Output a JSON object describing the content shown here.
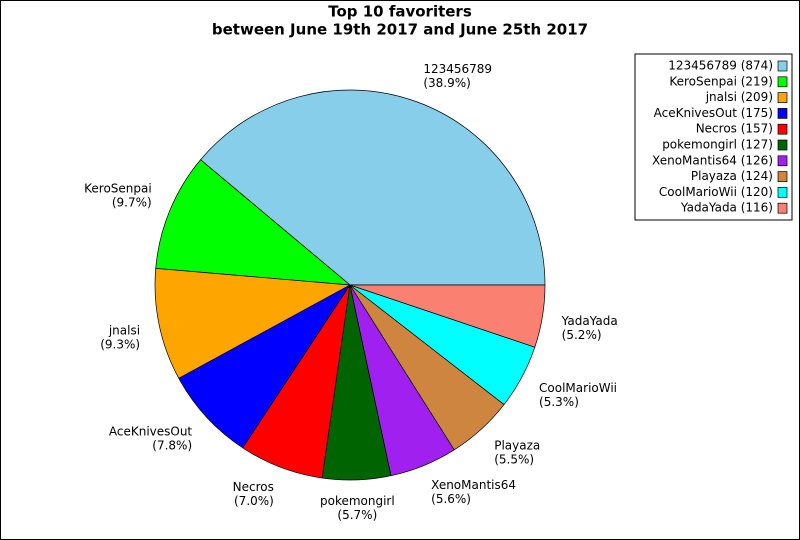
{
  "chart_data": {
    "type": "pie",
    "title": "Top 10 favoriters",
    "subtitle": "between June 19th 2017 and June 25th 2017",
    "categories": [
      "123456789",
      "KeroSenpai",
      "jnalsi",
      "AceKnivesOut",
      "Necros",
      "pokemongirl",
      "XenoMantis64",
      "Playaza",
      "CoolMarioWii",
      "YadaYada"
    ],
    "values": [
      874,
      219,
      209,
      175,
      157,
      127,
      126,
      124,
      120,
      116
    ],
    "value_labels": [
      "(38.9%)",
      "(9.7%)",
      "(9.3%)",
      "(7.8%)",
      "(7.0%)",
      "(5.7%)",
      "(5.6%)",
      "(5.5%)",
      "(5.3%)",
      "(5.2%)"
    ],
    "legend_labels": [
      "123456789 (874)",
      "KeroSenpai (219)",
      "jnalsi (209)",
      "AceKnivesOut (175)",
      "Necros (157)",
      "pokemongirl (127)",
      "XenoMantis64 (126)",
      "Playaza (124)",
      "CoolMarioWii (120)",
      "YadaYada (116)"
    ],
    "colors": [
      "#87ceeb",
      "#00ff00",
      "#ffa500",
      "#0000ff",
      "#ff0000",
      "#006400",
      "#a020f0",
      "#cd853f",
      "#00ffff",
      "#fa8072"
    ],
    "legend": "upper right"
  }
}
